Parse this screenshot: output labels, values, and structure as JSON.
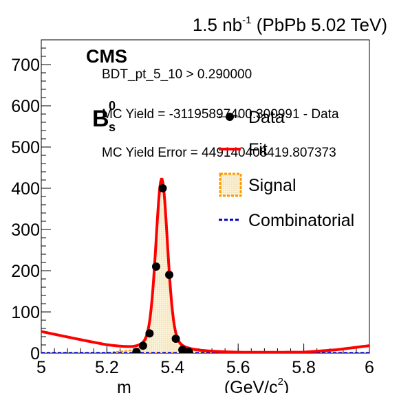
{
  "header": {
    "lumi": "1.5 nb",
    "lumi_sup": "-1",
    "system": " (PbPb 5.02 TeV)"
  },
  "labels": {
    "cms": "CMS",
    "particle_base": "B",
    "particle_sub": "s",
    "particle_sup": "0",
    "cut_text": "BDT_pt_5_10 > 0.290000",
    "mc_yield_text": "MC Yield = -31195897400.300991  -  Data",
    "mc_yield_error_text": "MC Yield Error = 449140408419.807373"
  },
  "colors": {
    "data": "#000000",
    "fit": "#ff0000",
    "signal_line": "#ff9900",
    "signal_fill": "#f5e6b8",
    "combinatorial": "#0000cc"
  },
  "chart_data": {
    "type": "scatter",
    "xlabel": "m (GeV/c²)",
    "xlabel_prefix": "m",
    "xlabel_unit": "(GeV/c",
    "xlabel_unit_sup": "2",
    "xlabel_unit_close": ")",
    "xlim": [
      5.0,
      6.0
    ],
    "ylim": [
      0,
      760
    ],
    "x_ticks": [
      5.0,
      5.2,
      5.4,
      5.6,
      5.8,
      6.0
    ],
    "x_tick_labels": [
      "5",
      "5.2",
      "5.4",
      "5.6",
      "5.8",
      "6"
    ],
    "y_ticks": [
      0,
      100,
      200,
      300,
      400,
      500,
      600,
      700
    ],
    "y_tick_labels": [
      "0",
      "100",
      "200",
      "300",
      "400",
      "500",
      "600",
      "700"
    ],
    "legend": {
      "position": "top-right",
      "entries": [
        {
          "label": "Data",
          "kind": "marker"
        },
        {
          "label": "Fit",
          "kind": "line"
        },
        {
          "label": "Signal",
          "kind": "box"
        },
        {
          "label": "Combinatorial",
          "kind": "dashed"
        }
      ]
    },
    "series": [
      {
        "name": "Data",
        "kind": "points",
        "x": [
          5.29,
          5.31,
          5.33,
          5.35,
          5.37,
          5.39,
          5.41,
          5.43,
          5.45
        ],
        "y": [
          3,
          18,
          48,
          210,
          400,
          190,
          35,
          8,
          3
        ]
      },
      {
        "name": "Fit",
        "kind": "curve",
        "peak_mean": 5.367,
        "peak_height": 418,
        "peak_sigma": 0.018,
        "background_x": [
          5.0,
          5.1,
          5.2,
          5.28,
          5.35,
          5.45,
          5.6,
          5.8,
          5.9,
          6.0
        ],
        "background_y": [
          52,
          35,
          18,
          8,
          5,
          3,
          1,
          2,
          8,
          18
        ]
      },
      {
        "name": "Signal",
        "kind": "area",
        "peak_mean": 5.367,
        "peak_height": 418,
        "peak_sigma": 0.018
      },
      {
        "name": "Combinatorial",
        "kind": "dashed",
        "x": [
          5.0,
          6.0
        ],
        "y": [
          1,
          1
        ]
      }
    ]
  }
}
